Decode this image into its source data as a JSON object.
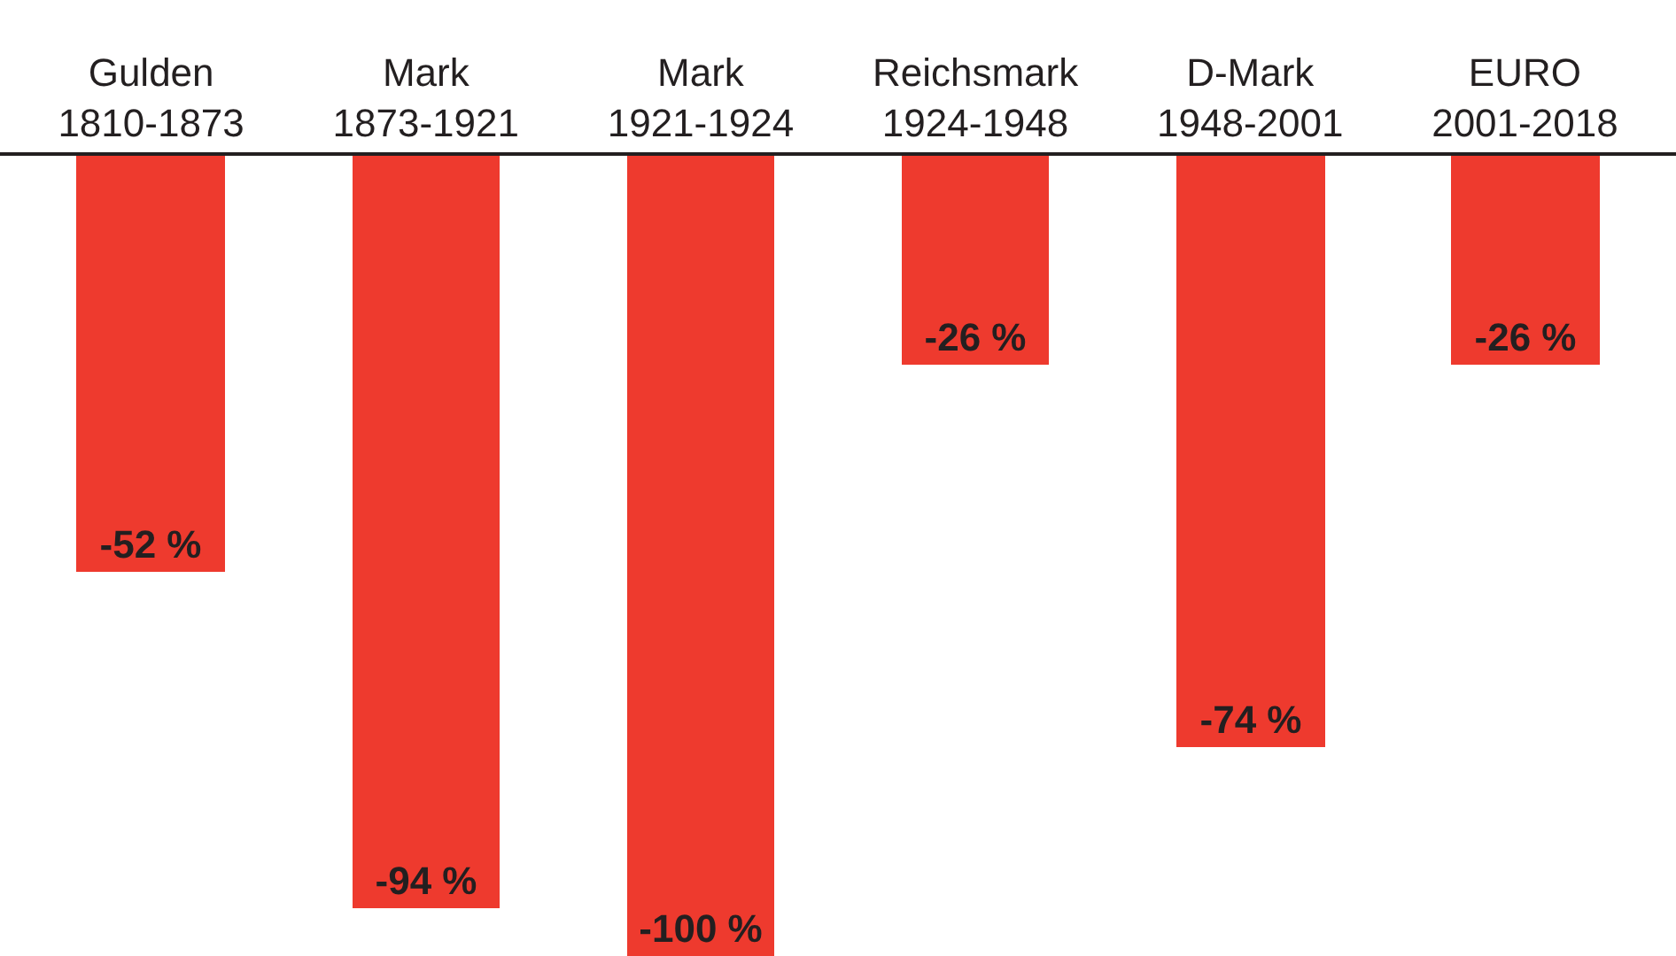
{
  "chart_data": {
    "type": "bar",
    "categories": [
      "Gulden\n1810-1873",
      "Mark\n1873-1921",
      "Mark\n1921-1924",
      "Reichsmark\n1924-1948",
      "D-Mark\n1948-2001",
      "EURO\n2001-2018"
    ],
    "values": [
      -52,
      -94,
      -100,
      -26,
      -74,
      -26
    ],
    "color": "#ee3a2e",
    "value_labels": [
      "-52 %",
      "-94 %",
      "-100 %",
      "-26 %",
      "-74 %",
      "-26 %"
    ],
    "tick_labels": "x"
  }
}
